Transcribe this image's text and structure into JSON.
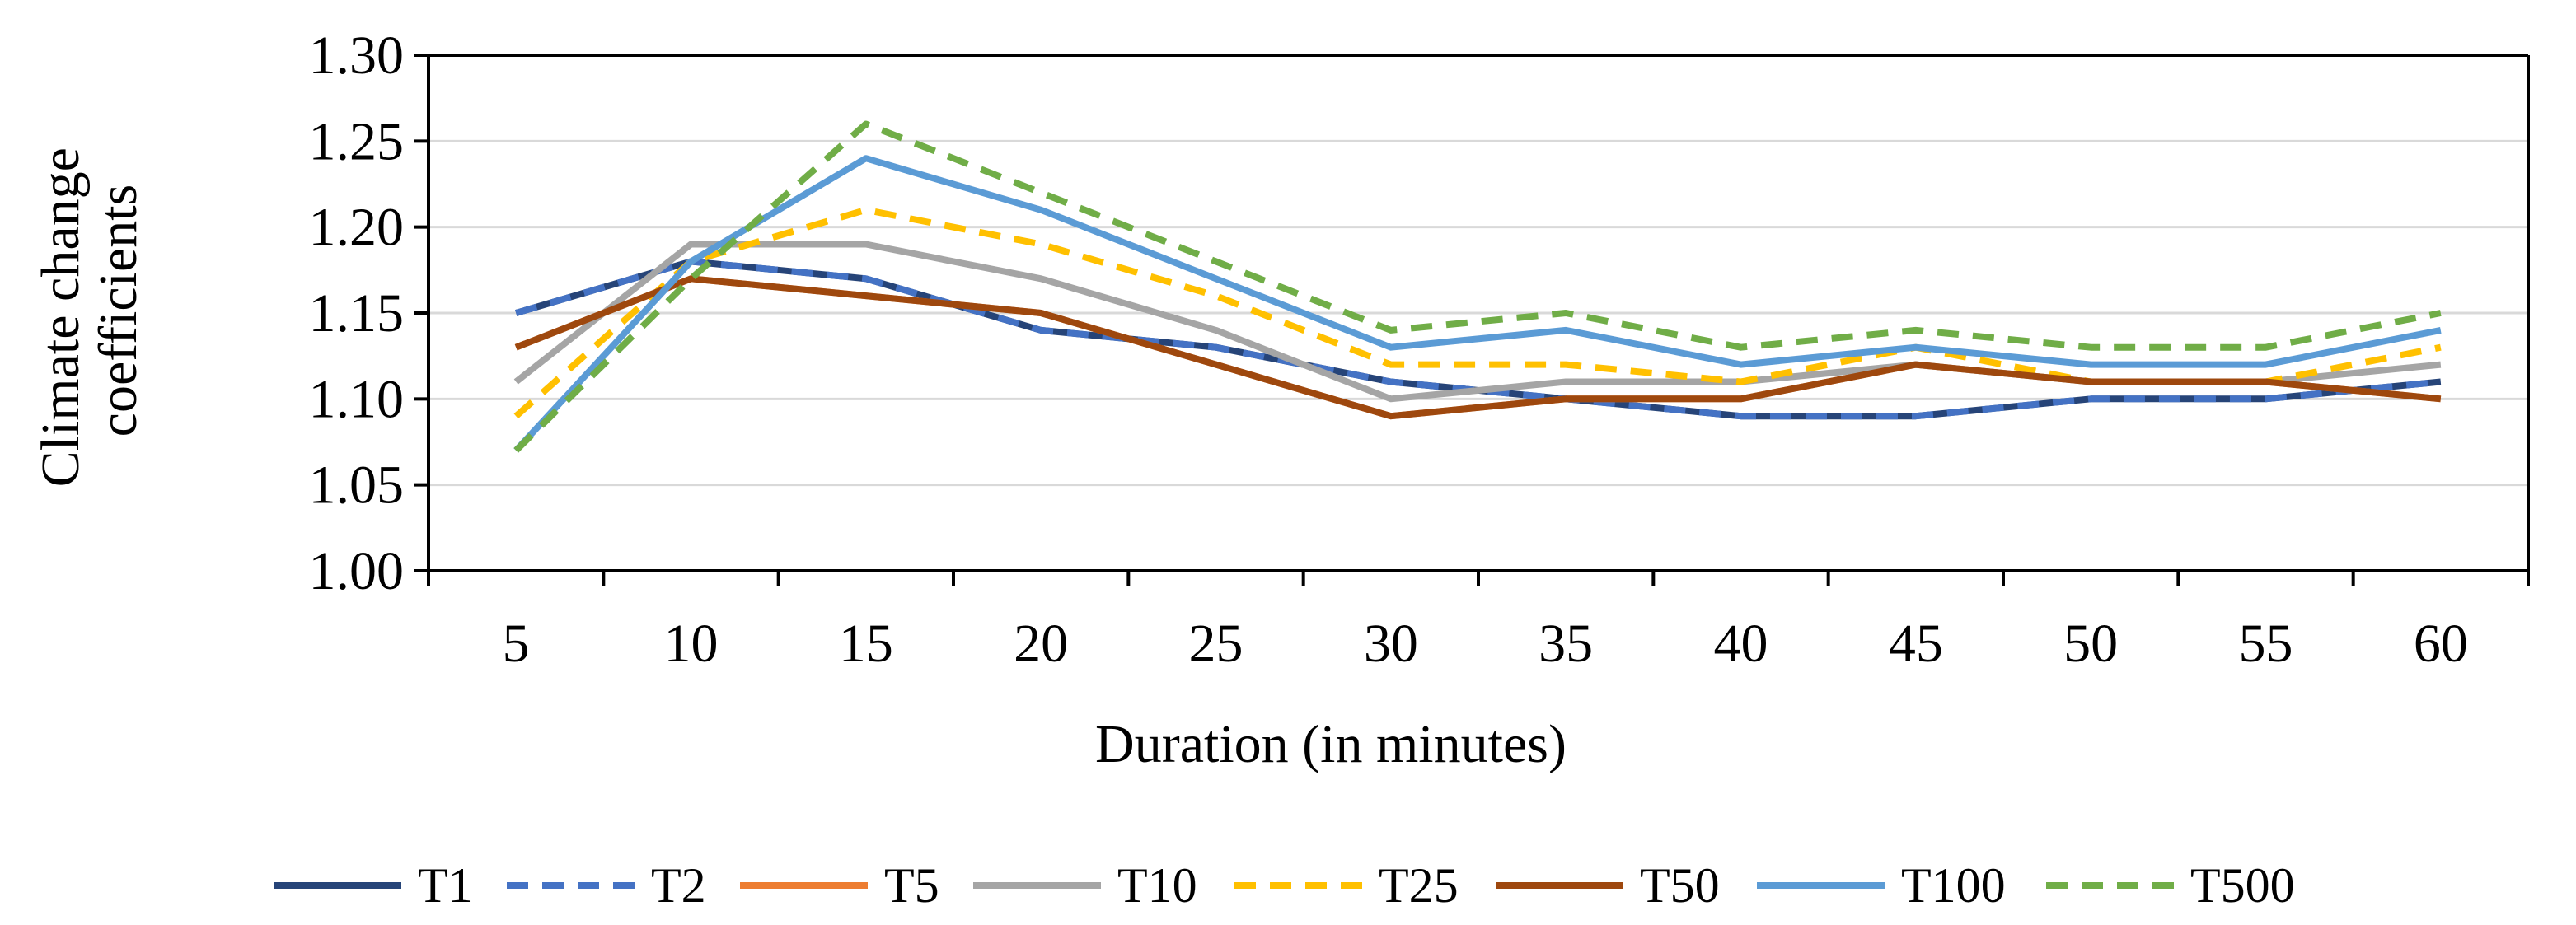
{
  "chart_data": {
    "type": "line",
    "title": "",
    "xlabel": "Duration (in minutes)",
    "ylabel_lines": [
      "Climate change",
      "coefficients"
    ],
    "ylabel": "Climate change coefficients",
    "ylim": [
      1.0,
      1.3
    ],
    "yticks": [
      1.0,
      1.05,
      1.1,
      1.15,
      1.2,
      1.25,
      1.3
    ],
    "ytick_labels": [
      "1.00",
      "1.05",
      "1.10",
      "1.15",
      "1.20",
      "1.25",
      "1.30"
    ],
    "categories": [
      "5",
      "10",
      "15",
      "20",
      "25",
      "30",
      "35",
      "40",
      "45",
      "50",
      "55",
      "60"
    ],
    "grid": true,
    "legend_position": "bottom",
    "series": [
      {
        "name": "T1",
        "color": "#264478",
        "dash": "solid",
        "values": [
          1.15,
          1.18,
          1.17,
          1.14,
          1.13,
          1.11,
          1.1,
          1.09,
          1.09,
          1.1,
          1.1,
          1.11
        ]
      },
      {
        "name": "T2",
        "color": "#4472C4",
        "dash": "dashed",
        "values": [
          1.15,
          1.18,
          1.17,
          1.14,
          1.13,
          1.11,
          1.1,
          1.09,
          1.09,
          1.1,
          1.1,
          1.11
        ]
      },
      {
        "name": "T5",
        "color": "#ED7D31",
        "dash": "solid",
        "values": [
          1.13,
          1.17,
          1.16,
          1.15,
          1.12,
          1.09,
          1.1,
          1.1,
          1.12,
          1.11,
          1.11,
          1.1
        ]
      },
      {
        "name": "T10",
        "color": "#A5A5A5",
        "dash": "solid",
        "values": [
          1.11,
          1.19,
          1.19,
          1.17,
          1.14,
          1.1,
          1.11,
          1.11,
          1.12,
          1.11,
          1.11,
          1.12
        ]
      },
      {
        "name": "T25",
        "color": "#FFC000",
        "dash": "dashed",
        "values": [
          1.09,
          1.18,
          1.21,
          1.19,
          1.16,
          1.12,
          1.12,
          1.11,
          1.13,
          1.11,
          1.11,
          1.13
        ]
      },
      {
        "name": "T50",
        "color": "#9E480E",
        "dash": "solid",
        "values": [
          1.13,
          1.17,
          1.16,
          1.15,
          1.12,
          1.09,
          1.1,
          1.1,
          1.12,
          1.11,
          1.11,
          1.1
        ]
      },
      {
        "name": "T100",
        "color": "#5B9BD5",
        "dash": "solid",
        "values": [
          1.07,
          1.18,
          1.24,
          1.21,
          1.17,
          1.13,
          1.14,
          1.12,
          1.13,
          1.12,
          1.12,
          1.14
        ]
      },
      {
        "name": "T500",
        "color": "#70AD47",
        "dash": "dashed",
        "values": [
          1.07,
          1.17,
          1.26,
          1.22,
          1.18,
          1.14,
          1.15,
          1.13,
          1.14,
          1.13,
          1.13,
          1.15
        ]
      }
    ]
  }
}
